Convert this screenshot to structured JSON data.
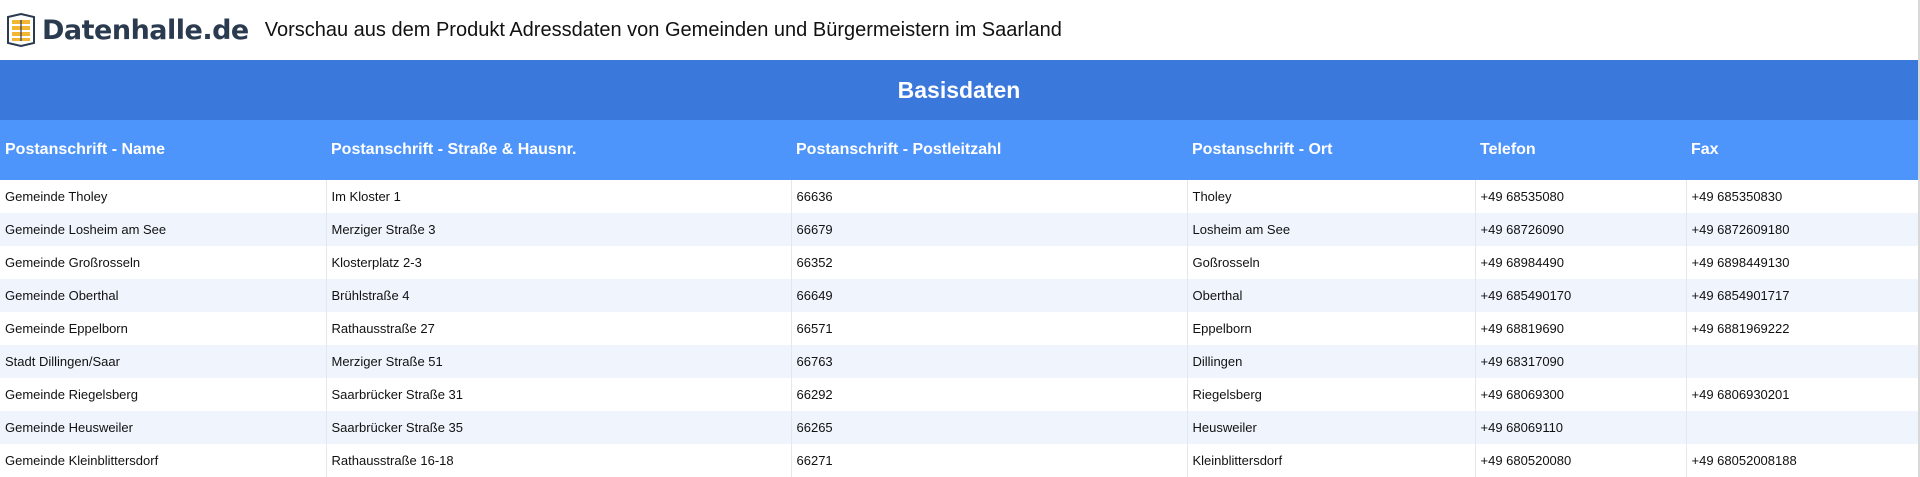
{
  "brand": {
    "name": "Datenhalle.de",
    "icon": "database-stack-icon",
    "colors": {
      "text": "#2a3a4f",
      "accent": "#f2b632"
    }
  },
  "header": {
    "title": "Vorschau aus dem Produkt Adressdaten von Gemeinden und Bürgermeistern im Saarland"
  },
  "table": {
    "group_header": "Basisdaten",
    "columns": [
      "Postanschrift - Name",
      "Postanschrift - Straße & Hausnr.",
      "Postanschrift - Postleitzahl",
      "Postanschrift - Ort",
      "Telefon",
      "Fax"
    ],
    "rows": [
      [
        "Gemeinde Tholey",
        "Im Kloster 1",
        "66636",
        "Tholey",
        "+49 68535080",
        "+49 685350830"
      ],
      [
        "Gemeinde Losheim am See",
        "Merziger Straße 3",
        "66679",
        "Losheim am See",
        "+49 68726090",
        "+49 6872609180"
      ],
      [
        "Gemeinde Großrosseln",
        "Klosterplatz 2-3",
        "66352",
        "Goßrosseln",
        "+49 68984490",
        "+49 6898449130"
      ],
      [
        "Gemeinde Oberthal",
        "Brühlstraße 4",
        "66649",
        "Oberthal",
        "+49 685490170",
        "+49 6854901717"
      ],
      [
        "Gemeinde Eppelborn",
        "Rathausstraße 27",
        "66571",
        "Eppelborn",
        "+49 68819690",
        "+49 6881969222"
      ],
      [
        "Stadt Dillingen/Saar",
        "Merziger Straße 51",
        "66763",
        "Dillingen",
        "+49 68317090",
        ""
      ],
      [
        "Gemeinde Riegelsberg",
        "Saarbrücker Straße 31",
        "66292",
        "Riegelsberg",
        "+49 68069300",
        "+49 6806930201"
      ],
      [
        "Gemeinde Heusweiler",
        "Saarbrücker Straße 35",
        "66265",
        "Heusweiler",
        "+49 68069110",
        ""
      ],
      [
        "Gemeinde Kleinblittersdorf",
        "Rathausstraße 16-18",
        "66271",
        "Kleinblittersdorf",
        "+49 680520080",
        "+49 68052008188"
      ]
    ]
  },
  "colors": {
    "group_header_bg": "#3b78dc",
    "column_header_bg": "#4d94fb",
    "row_alt_bg": "#f0f5fd"
  }
}
